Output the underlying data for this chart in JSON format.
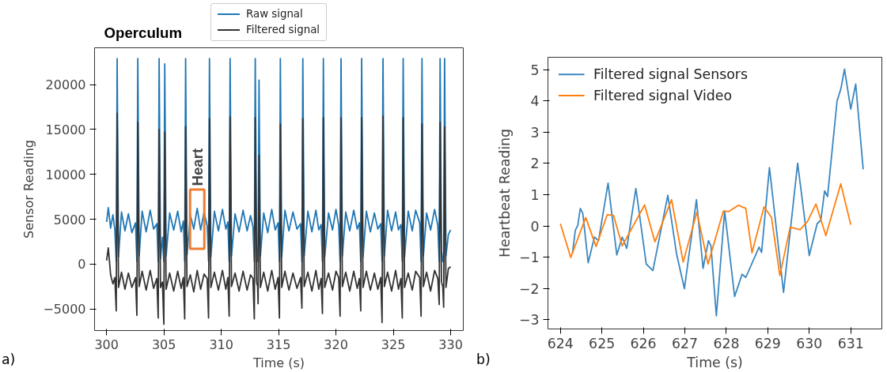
{
  "chart_data": [
    {
      "type": "line",
      "xlabel": "Time (s)",
      "ylabel": "Sensor Reading",
      "legend": "top",
      "grid": false,
      "xlim": [
        298.95,
        331.1
      ],
      "ylim": [
        -7400,
        24100
      ],
      "xticks": [
        300,
        305,
        310,
        315,
        320,
        325,
        330
      ],
      "yticks": [
        -5000,
        0,
        5000,
        10000,
        15000,
        20000
      ],
      "annotations": [
        {
          "text": "Operculum",
          "x": 306.89,
          "y": 22900
        },
        {
          "text": "Heart",
          "x": 307.9,
          "y": 5000
        },
        "a)"
      ],
      "x": [
        300.0,
        300.15,
        300.35,
        300.55,
        300.72,
        300.84,
        300.92,
        301.04,
        301.3,
        301.6,
        301.9,
        302.2,
        302.52,
        302.64,
        302.72,
        302.84,
        303.1,
        303.45,
        303.8,
        304.1,
        304.38,
        304.5,
        304.58,
        304.7,
        304.87,
        304.99,
        305.07,
        305.19,
        305.5,
        305.85,
        306.2,
        306.5,
        306.69,
        306.81,
        306.89,
        307.01,
        307.3,
        307.6,
        307.9,
        308.2,
        308.5,
        308.77,
        308.89,
        308.97,
        309.09,
        309.4,
        309.75,
        310.1,
        310.4,
        310.57,
        310.69,
        310.77,
        310.89,
        311.2,
        311.55,
        311.9,
        312.25,
        312.55,
        312.76,
        312.88,
        312.96,
        313.08,
        313.17,
        313.21,
        313.29,
        313.41,
        313.7,
        314.05,
        314.4,
        314.7,
        314.95,
        315.07,
        315.15,
        315.27,
        315.55,
        315.9,
        316.25,
        316.6,
        316.91,
        317.03,
        317.11,
        317.23,
        317.55,
        317.9,
        318.25,
        318.5,
        318.7,
        318.82,
        318.9,
        319.02,
        319.35,
        319.7,
        320.0,
        320.24,
        320.36,
        320.44,
        320.56,
        320.85,
        321.2,
        321.55,
        321.85,
        322.04,
        322.16,
        322.24,
        322.36,
        322.65,
        323.0,
        323.35,
        323.65,
        323.9,
        324.02,
        324.1,
        324.22,
        324.5,
        324.85,
        325.2,
        325.45,
        325.66,
        325.78,
        325.86,
        325.98,
        326.3,
        326.65,
        326.95,
        327.3,
        327.42,
        327.5,
        327.62,
        327.9,
        328.25,
        328.6,
        328.88,
        329.0,
        329.08,
        329.2,
        329.31,
        329.39,
        329.47,
        329.59,
        329.8,
        330.0
      ],
      "series": [
        {
          "name": "Raw signal",
          "color": "#1f77b4",
          "values": [
            4700,
            6300,
            4000,
            5500,
            3800,
            300,
            22900,
            800,
            5800,
            3700,
            5600,
            3500,
            4600,
            300,
            22900,
            900,
            5900,
            3600,
            6000,
            3900,
            4500,
            300,
            22900,
            600,
            3000,
            300,
            22300,
            900,
            5700,
            3800,
            5900,
            3600,
            4800,
            300,
            22900,
            1000,
            5500,
            3900,
            6200,
            3800,
            5800,
            4300,
            300,
            22900,
            800,
            5900,
            3700,
            6100,
            3900,
            4700,
            300,
            22900,
            900,
            5600,
            3600,
            6000,
            3700,
            5400,
            4200,
            300,
            22900,
            2000,
            300,
            300,
            20500,
            900,
            5700,
            3500,
            6100,
            3800,
            4600,
            300,
            22900,
            800,
            6000,
            3700,
            5800,
            3900,
            4500,
            300,
            22900,
            900,
            5900,
            3600,
            6000,
            3800,
            4400,
            300,
            22900,
            800,
            5700,
            3800,
            6100,
            4300,
            300,
            22900,
            900,
            5800,
            3700,
            6000,
            3900,
            4600,
            300,
            22900,
            800,
            5900,
            3600,
            5700,
            3900,
            4500,
            300,
            22900,
            900,
            6000,
            3700,
            5800,
            3800,
            4400,
            300,
            22900,
            800,
            5900,
            3700,
            6000,
            4600,
            300,
            22900,
            900,
            5700,
            3800,
            6100,
            4300,
            300,
            22900,
            1500,
            300,
            300,
            22900,
            900,
            3300,
            3800
          ]
        },
        {
          "name": "Filtered signal",
          "color": "#333333",
          "values": [
            400,
            1800,
            -1200,
            -2200,
            -1500,
            -5200,
            16800,
            -2600,
            -900,
            -2800,
            -1000,
            -2600,
            -1500,
            -5700,
            15800,
            -2500,
            -800,
            -2900,
            -700,
            -2700,
            -1600,
            -6000,
            15000,
            -2600,
            -2000,
            -6700,
            14700,
            -2800,
            -1000,
            -3000,
            -800,
            -2700,
            -1500,
            -6100,
            15300,
            -2500,
            -1200,
            -3100,
            -700,
            -2800,
            -1100,
            -1600,
            -6000,
            16200,
            -2600,
            -900,
            -2900,
            -700,
            -2800,
            -1500,
            -5800,
            16400,
            -2500,
            -1000,
            -3000,
            -800,
            -2900,
            -1200,
            -1600,
            -6100,
            16300,
            -2000,
            -2500,
            -4400,
            12100,
            -2600,
            -900,
            -3000,
            -700,
            -2800,
            -1500,
            -6000,
            15600,
            -2600,
            -800,
            -2900,
            -1000,
            -2700,
            -1500,
            -4900,
            16200,
            -2500,
            -900,
            -3000,
            -700,
            -2800,
            -1600,
            -5500,
            16300,
            -2600,
            -1000,
            -2900,
            -800,
            -1500,
            -5800,
            16300,
            -2500,
            -900,
            -3000,
            -800,
            -2700,
            -1600,
            -5200,
            16300,
            -2600,
            -800,
            -2900,
            -1000,
            -2800,
            -1500,
            -6500,
            16500,
            -2500,
            -900,
            -3000,
            -700,
            -2800,
            -1600,
            -6000,
            16300,
            -2600,
            -1000,
            -2900,
            -800,
            -1500,
            -5800,
            15600,
            -2500,
            -900,
            -3000,
            -700,
            -1600,
            -4500,
            15800,
            -2000,
            -2500,
            -4800,
            15300,
            -2600,
            -500,
            -300
          ]
        }
      ]
    },
    {
      "type": "line",
      "xlabel": "Time (s)",
      "ylabel": "Heartbeat Reading",
      "legend": "top left",
      "grid": false,
      "xlim": [
        623.7,
        631.75
      ],
      "ylim": [
        -3.3,
        5.4
      ],
      "xticks": [
        624,
        625,
        626,
        627,
        628,
        629,
        630,
        631
      ],
      "yticks": [
        -3,
        -2,
        -1,
        0,
        1,
        2,
        3,
        4,
        5
      ],
      "annotations": [
        "b)"
      ],
      "series": [
        {
          "name": "Filtered signal Sensors",
          "color": "#3a87c0",
          "x": [
            624.29,
            624.36,
            624.42,
            624.48,
            624.54,
            624.67,
            624.82,
            624.92,
            625.15,
            625.36,
            625.49,
            625.6,
            625.82,
            626.07,
            626.23,
            626.59,
            626.8,
            626.99,
            627.28,
            627.44,
            627.57,
            627.63,
            627.76,
            627.96,
            628.2,
            628.38,
            628.47,
            628.79,
            628.85,
            629.04,
            629.38,
            629.72,
            630.0,
            630.19,
            630.28,
            630.37,
            630.44,
            630.67,
            630.76,
            630.85,
            631.0,
            631.12,
            631.3
          ],
          "values": [
            -0.89,
            -0.14,
            0.02,
            0.56,
            0.4,
            -1.18,
            -0.36,
            -0.47,
            1.37,
            -0.93,
            -0.36,
            -0.72,
            1.2,
            -1.22,
            -1.43,
            0.98,
            -0.89,
            -2.01,
            0.84,
            -1.36,
            -0.47,
            -0.64,
            -2.88,
            0.48,
            -2.26,
            -1.55,
            -1.65,
            -0.68,
            -0.85,
            1.87,
            -2.13,
            2.01,
            -0.95,
            0.07,
            0.19,
            1.12,
            0.94,
            4.0,
            4.38,
            5.02,
            3.74,
            4.54,
            1.81
          ]
        },
        {
          "name": "Filtered signal Video",
          "color": "#ff7f0e",
          "x": [
            624.0,
            624.25,
            624.61,
            624.86,
            625.13,
            625.28,
            625.49,
            626.03,
            626.28,
            626.68,
            626.96,
            627.29,
            627.56,
            627.93,
            628.06,
            628.29,
            628.47,
            628.62,
            628.91,
            629.09,
            629.29,
            629.54,
            629.78,
            629.96,
            630.16,
            630.4,
            630.76,
            631.0
          ],
          "values": [
            0.07,
            -1.01,
            0.27,
            -0.66,
            0.36,
            0.34,
            -0.64,
            0.67,
            -0.51,
            0.84,
            -1.16,
            0.44,
            -1.22,
            0.48,
            0.46,
            0.66,
            0.56,
            -0.86,
            0.61,
            0.27,
            -1.59,
            -0.04,
            -0.12,
            0.15,
            0.7,
            -0.31,
            1.35,
            0.04
          ]
        }
      ]
    }
  ]
}
